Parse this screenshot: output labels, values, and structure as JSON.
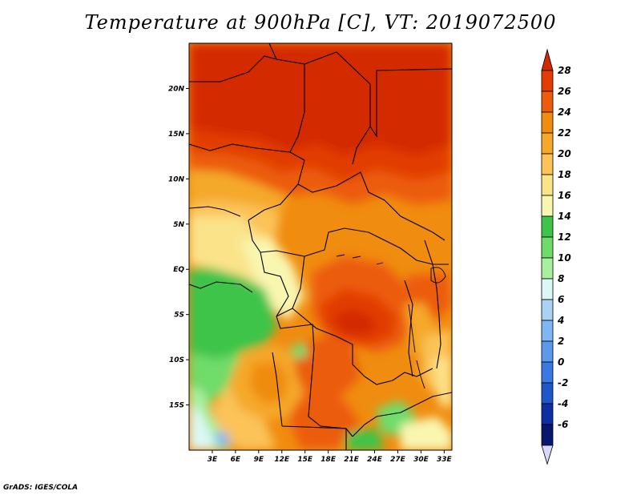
{
  "title": "Temperature at 900hPa [C], VT: 2019072500",
  "credit": "GrADS: IGES/COLA",
  "map": {
    "lat_range": [
      -20,
      25
    ],
    "lon_range": [
      0,
      34
    ],
    "lat_ticks": [
      {
        "lat": 20,
        "label": "20N"
      },
      {
        "lat": 15,
        "label": "15N"
      },
      {
        "lat": 10,
        "label": "10N"
      },
      {
        "lat": 5,
        "label": "5N"
      },
      {
        "lat": 0,
        "label": "EQ"
      },
      {
        "lat": -5,
        "label": "5S"
      },
      {
        "lat": -10,
        "label": "10S"
      },
      {
        "lat": -15,
        "label": "15S"
      }
    ],
    "lon_ticks": [
      {
        "lon": 3,
        "label": "3E"
      },
      {
        "lon": 6,
        "label": "6E"
      },
      {
        "lon": 9,
        "label": "9E"
      },
      {
        "lon": 12,
        "label": "12E"
      },
      {
        "lon": 15,
        "label": "15E"
      },
      {
        "lon": 18,
        "label": "18E"
      },
      {
        "lon": 21,
        "label": "21E"
      },
      {
        "lon": 24,
        "label": "24E"
      },
      {
        "lon": 27,
        "label": "27E"
      },
      {
        "lon": 30,
        "label": "30E"
      },
      {
        "lon": 33,
        "label": "33E"
      }
    ]
  },
  "colorbar": {
    "levels": [
      28,
      26,
      24,
      22,
      20,
      18,
      16,
      14,
      12,
      10,
      8,
      6,
      4,
      2,
      0,
      -2,
      -4,
      -6
    ],
    "bins": [
      {
        "range": "above 28",
        "color": "#d42a00"
      },
      {
        "range": "26-28",
        "color": "#e23c00"
      },
      {
        "range": "24-26",
        "color": "#ec5c0c"
      },
      {
        "range": "22-24",
        "color": "#f08c10"
      },
      {
        "range": "20-22",
        "color": "#f5a92a"
      },
      {
        "range": "18-20",
        "color": "#fbc359"
      },
      {
        "range": "16-18",
        "color": "#fbe38a"
      },
      {
        "range": "14-16",
        "color": "#f9f6b0"
      },
      {
        "range": "12-14",
        "color": "#3ec44a"
      },
      {
        "range": "10-12",
        "color": "#6fdc6a"
      },
      {
        "range": "8-10",
        "color": "#a8f0a0"
      },
      {
        "range": "6-8",
        "color": "#dcf8f6"
      },
      {
        "range": "4-6",
        "color": "#aad2f4"
      },
      {
        "range": "2-4",
        "color": "#80b6f2"
      },
      {
        "range": "0-2",
        "color": "#5c98ec"
      },
      {
        "range": "-2-0",
        "color": "#3a78e2"
      },
      {
        "range": "-4--2",
        "color": "#1f56c9"
      },
      {
        "range": "-6--4",
        "color": "#0d2fa3"
      },
      {
        "range": "below -6",
        "color": "#08166e"
      }
    ],
    "below_min_color": "#d8d8f8"
  }
}
